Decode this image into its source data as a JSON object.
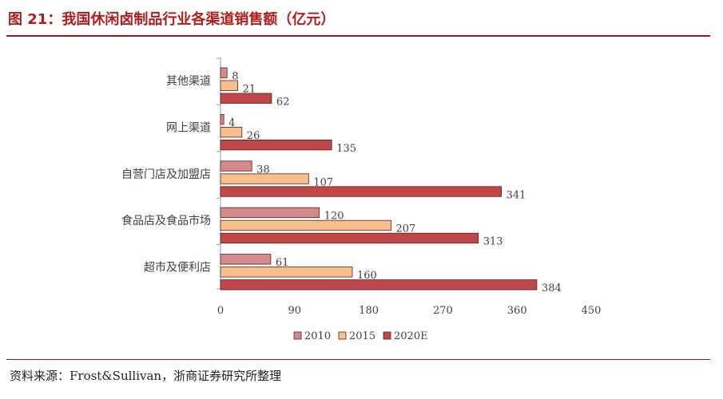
{
  "header": {
    "title": "图 21：我国休闲卤制品行业各渠道销售额（亿元）"
  },
  "footer": {
    "source": "资料来源：Frost&Sullivan，浙商证券研究所整理"
  },
  "chart_data": {
    "type": "bar",
    "orientation": "horizontal",
    "title": "我国休闲卤制品行业各渠道销售额（亿元）",
    "categories": [
      "其他渠道",
      "网上渠道",
      "自营门店及加盟店",
      "食品店及食品市场",
      "超市及便利店"
    ],
    "series": [
      {
        "name": "2010",
        "color": "#d48a8a",
        "values": [
          8,
          4,
          38,
          120,
          61
        ]
      },
      {
        "name": "2015",
        "color": "#f7bf8b",
        "values": [
          21,
          26,
          107,
          207,
          160
        ]
      },
      {
        "name": "2020E",
        "color": "#bf4747",
        "values": [
          62,
          135,
          341,
          313,
          384
        ]
      }
    ],
    "x_ticks": [
      0,
      90,
      180,
      270,
      360,
      450
    ],
    "xlim": [
      0,
      450
    ],
    "grid": false,
    "legend": "bottom"
  }
}
